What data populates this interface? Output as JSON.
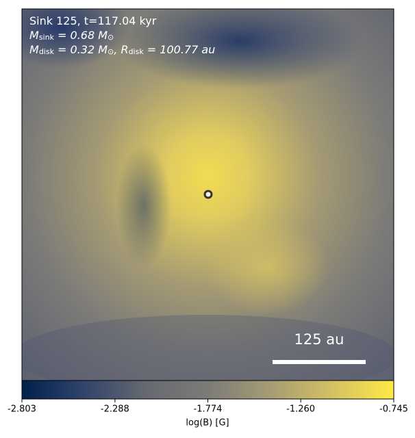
{
  "chart_data": {
    "type": "image",
    "annotation_lines": [
      [
        "Sink 125, t=117.04 kyr"
      ],
      [
        "M",
        "sink",
        " = 0.68 M",
        "⊙"
      ],
      [
        "M",
        "disk",
        " = 0.32 M",
        "⊙",
        ", R",
        "disk",
        " = 100.77 au"
      ]
    ],
    "scalebar_label": "125 au",
    "colorbar": {
      "label": "log(B) [G]",
      "lim": [
        -2.803,
        -0.745
      ],
      "ticks": [
        -2.803,
        -2.288,
        -1.774,
        {
          "value": -1.26,
          "label": "-1.260"
        },
        -0.745
      ],
      "colors": [
        "#00204c",
        "#31446b",
        "#666970",
        "#7c7b78",
        "#a59c74",
        "#d3c164",
        "#ffe945"
      ]
    }
  }
}
